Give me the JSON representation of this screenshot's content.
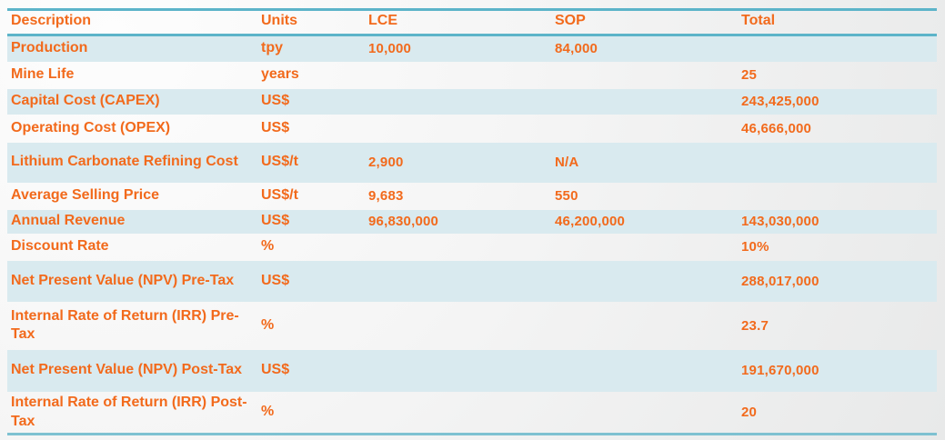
{
  "colors": {
    "accent_text": "#f26a1c",
    "rule_teal": "#5cb4c9",
    "stripe_blue": "#d9eaef"
  },
  "table": {
    "columns": [
      {
        "key": "description",
        "label": "Description"
      },
      {
        "key": "units",
        "label": "Units"
      },
      {
        "key": "lce",
        "label": "LCE"
      },
      {
        "key": "sop",
        "label": "SOP"
      },
      {
        "key": "total",
        "label": "Total"
      }
    ],
    "rows": [
      {
        "description": "Production",
        "units": "tpy",
        "lce": "10,000",
        "sop": "84,000",
        "total": ""
      },
      {
        "description": "Mine Life",
        "units": "years",
        "lce": "",
        "sop": "",
        "total": "25"
      },
      {
        "description": "Capital Cost (CAPEX)",
        "units": "US$",
        "lce": "",
        "sop": "",
        "total": "243,425,000"
      },
      {
        "description": "Operating Cost (OPEX)",
        "units": "US$",
        "lce": "",
        "sop": "",
        "total": "46,666,000"
      },
      {
        "description": "Lithium Carbonate Refining Cost",
        "units": "US$/t",
        "lce": "2,900",
        "sop": "N/A",
        "total": ""
      },
      {
        "description": "Average Selling Price",
        "units": "US$/t",
        "lce": "9,683",
        "sop": "550",
        "total": ""
      },
      {
        "description": "Annual Revenue",
        "units": "US$",
        "lce": "96,830,000",
        "sop": "46,200,000",
        "total": "143,030,000"
      },
      {
        "description": "Discount Rate",
        "units": "%",
        "lce": "",
        "sop": "",
        "total": "10%"
      },
      {
        "description": "Net Present Value (NPV) Pre-Tax",
        "units": "US$",
        "lce": "",
        "sop": "",
        "total": "288,017,000"
      },
      {
        "description": "Internal Rate of Return (IRR) Pre-Tax",
        "units": "%",
        "lce": "",
        "sop": "",
        "total": "23.7"
      },
      {
        "description": "Net Present Value (NPV) Post-Tax",
        "units": "US$",
        "lce": "",
        "sop": "",
        "total": "191,670,000"
      },
      {
        "description": "Internal Rate of Return (IRR) Post-Tax",
        "units": "%",
        "lce": "",
        "sop": "",
        "total": "20"
      }
    ]
  }
}
